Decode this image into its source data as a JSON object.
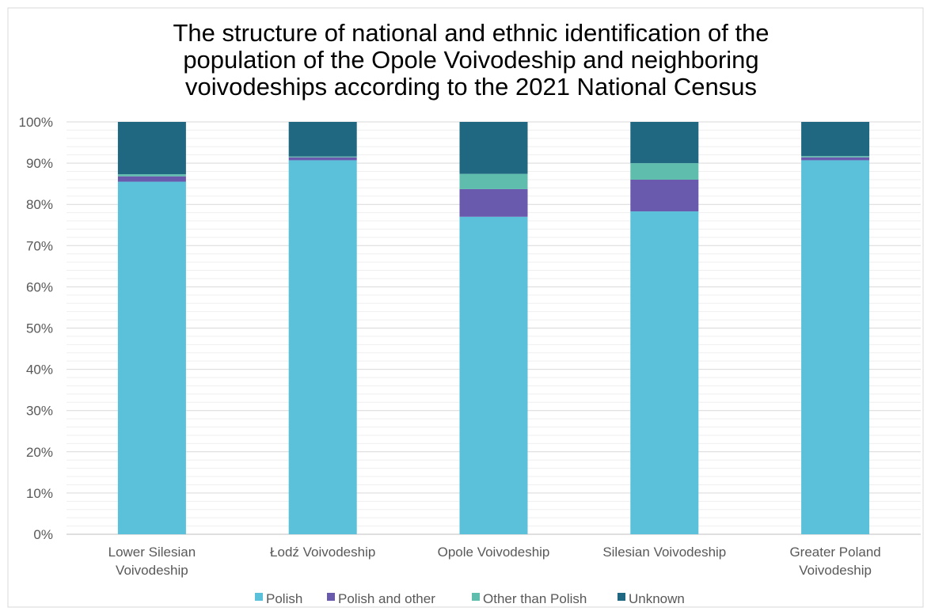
{
  "chart_data": {
    "type": "bar",
    "stacked": true,
    "title_lines": [
      "The structure of national and ethnic identification of the",
      "population of the Opole Voivodeship and neighboring",
      "voivodeships according to the 2021 National Census"
    ],
    "categories": [
      [
        "Lower Silesian",
        "Voivodeship"
      ],
      [
        "Łodź Voivodeship"
      ],
      [
        "Opole Voivodeship"
      ],
      [
        "Silesian Voivodeship"
      ],
      [
        "Greater Poland",
        "Voivodeship"
      ]
    ],
    "series": [
      {
        "name": "Polish",
        "color": "#5bc0d9",
        "values": [
          85.5,
          90.7,
          77.0,
          78.3,
          90.7
        ]
      },
      {
        "name": "Polish and other",
        "color": "#6a5aad",
        "values": [
          1.3,
          0.7,
          6.7,
          7.7,
          0.7
        ]
      },
      {
        "name": "Other than Polish",
        "color": "#5ebdac",
        "values": [
          0.5,
          0.2,
          3.7,
          4.0,
          0.3
        ]
      },
      {
        "name": "Unknown",
        "color": "#206882",
        "values": [
          12.7,
          8.4,
          12.6,
          10.0,
          8.3
        ]
      }
    ],
    "yticks": [
      "0%",
      "10%",
      "20%",
      "30%",
      "40%",
      "50%",
      "60%",
      "70%",
      "80%",
      "90%",
      "100%"
    ],
    "ylim": [
      0,
      100
    ],
    "grid": true,
    "minor_grid": true,
    "legend_position": "bottom"
  }
}
